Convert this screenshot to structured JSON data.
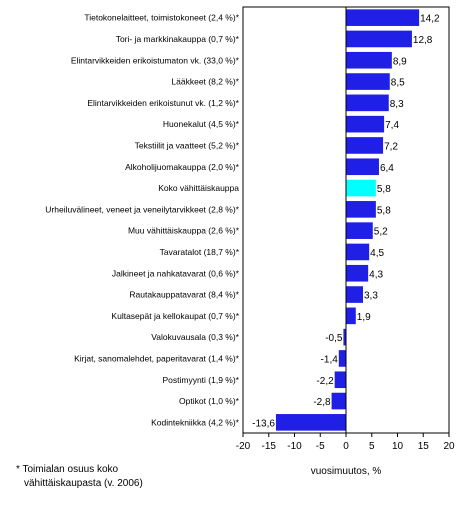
{
  "chart_data": {
    "type": "bar",
    "orientation": "horizontal",
    "categories": [
      "Tietokonelaitteet, toimistokoneet (2,4 %)*",
      "Tori- ja markkinakauppa (0,7 %)*",
      "Elintarvikkeiden erikoistumaton vk. (33,0 %)*",
      "Lääkkeet (8,2 %)*",
      "Elintarvikkeiden erikoistunut vk. (1,2 %)*",
      "Huonekalut (4,5 %)*",
      "Tekstiilit ja vaatteet (5,2 %)*",
      "Alkoholijuomakauppa (2,0 %)*",
      "Koko vähittäiskauppa",
      "Urheiluvälineet, veneet ja veneilytarvikkeet (2,8 %)*",
      "Muu vähittäiskauppa (2,6 %)*",
      "Tavaratalot (18,7 %)*",
      "Jalkineet ja nahkatavarat (0,6 %)*",
      "Rautakauppatavarat (8,4 %)*",
      "Kultasepät ja kellokaupat (0,7 %)*",
      "Valokuvausala (0,3 %)*",
      "Kirjat, sanomalehdet, paperitavarat (1,4 %)*",
      "Postimyynti (1,9 %)*",
      "Optikot (1,0 %)*",
      "Kodintekniikka (4,2 %)*"
    ],
    "values": [
      14.2,
      12.8,
      8.9,
      8.5,
      8.3,
      7.4,
      7.2,
      6.4,
      5.8,
      5.8,
      5.2,
      4.5,
      4.3,
      3.3,
      1.9,
      -0.5,
      -1.4,
      -2.2,
      -2.8,
      -13.6
    ],
    "value_labels": [
      "14,2",
      "12,8",
      "8,9",
      "8,5",
      "8,3",
      "7,4",
      "7,2",
      "6,4",
      "5,8",
      "5,8",
      "5,2",
      "4,5",
      "4,3",
      "3,3",
      "1,9",
      "-0,5",
      "-1,4",
      "-2,2",
      "-2,8",
      "-13,6"
    ],
    "highlight_index": 8,
    "xlabel": "vuosimuutos, %",
    "xlim": [
      -20,
      20
    ],
    "xticks": [
      -20,
      -15,
      -10,
      -5,
      0,
      5,
      10,
      15,
      20
    ],
    "grid": false,
    "colors": {
      "bar": "#1f1fe6",
      "highlight": "#00ffff"
    }
  },
  "footnote": {
    "line1": "* Toimialan osuus koko",
    "line2": "vähittäiskaupasta (v. 2006)"
  }
}
